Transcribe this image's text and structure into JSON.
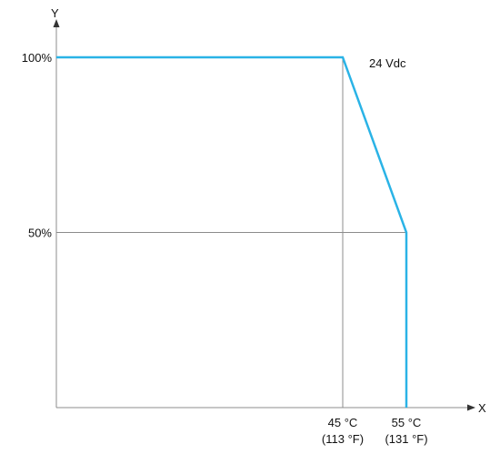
{
  "chart_data": {
    "type": "line",
    "xlabel": "X",
    "ylabel": "Y",
    "y_ticks": [
      {
        "value": 100,
        "label": "100%"
      },
      {
        "value": 50,
        "label": "50%"
      }
    ],
    "x_ticks": [
      {
        "value": 45,
        "label": "45 °C",
        "sublabel": "(113 °F)"
      },
      {
        "value": 55,
        "label": "55 °C",
        "sublabel": "(131 °F)"
      }
    ],
    "series": [
      {
        "name": "24 Vdc",
        "color": "#2ab3e6",
        "points": [
          {
            "x": 0,
            "y": 100
          },
          {
            "x": 45,
            "y": 100
          },
          {
            "x": 55,
            "y": 50
          },
          {
            "x": 55,
            "y": 0
          }
        ]
      }
    ],
    "reference_lines": [
      {
        "axis": "y",
        "value": 50
      },
      {
        "axis": "x",
        "value": 45
      }
    ],
    "grid": false,
    "legend": "none"
  }
}
